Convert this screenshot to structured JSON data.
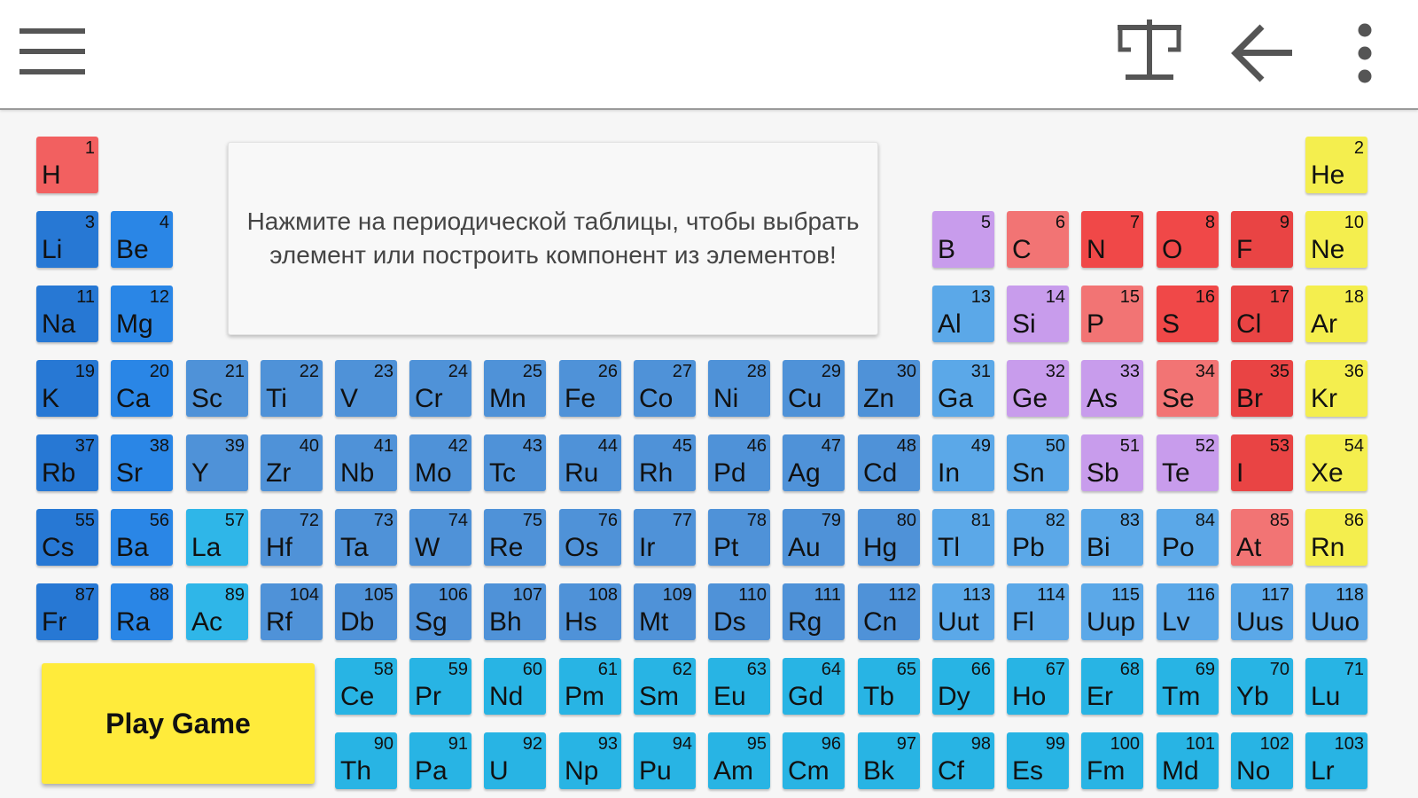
{
  "toolbar": {
    "menu_icon": "hamburger-menu-icon",
    "balance_icon": "scales-balance-icon",
    "back_icon": "arrow-left-icon",
    "more_icon": "more-vertical-icon"
  },
  "info_text": "Нажмите на периодической таблицы, чтобы выбрать элемент или построить компонент из элементов!",
  "play_game_label": "Play Game",
  "colors": {
    "hydrogen": "#f26060",
    "alkali": "#2778d4",
    "alkaline_earth": "#2a86e6",
    "transition": "#4f92d8",
    "post_transition": "#5ba8e8",
    "metalloid": "#c89cec",
    "nonmetal_light": "#f27474",
    "nonmetal_red": "#f04848",
    "halogen_red": "#e94444",
    "noble_gas": "#f4ee4e",
    "lanthanide": "#28b4e4",
    "actinide": "#28b4e4",
    "la_ac": "#2fb6e8"
  },
  "elements": [
    {
      "n": "1",
      "s": "H",
      "r": 0,
      "c": 0,
      "t": "hydrogen"
    },
    {
      "n": "2",
      "s": "He",
      "r": 0,
      "c": 17,
      "t": "noble_gas"
    },
    {
      "n": "3",
      "s": "Li",
      "r": 1,
      "c": 0,
      "t": "alkali"
    },
    {
      "n": "4",
      "s": "Be",
      "r": 1,
      "c": 1,
      "t": "alkaline_earth"
    },
    {
      "n": "5",
      "s": "B",
      "r": 1,
      "c": 12,
      "t": "metalloid"
    },
    {
      "n": "6",
      "s": "C",
      "r": 1,
      "c": 13,
      "t": "nonmetal_light"
    },
    {
      "n": "7",
      "s": "N",
      "r": 1,
      "c": 14,
      "t": "nonmetal_red"
    },
    {
      "n": "8",
      "s": "O",
      "r": 1,
      "c": 15,
      "t": "nonmetal_red"
    },
    {
      "n": "9",
      "s": "F",
      "r": 1,
      "c": 16,
      "t": "halogen_red"
    },
    {
      "n": "10",
      "s": "Ne",
      "r": 1,
      "c": 17,
      "t": "noble_gas"
    },
    {
      "n": "11",
      "s": "Na",
      "r": 2,
      "c": 0,
      "t": "alkali"
    },
    {
      "n": "12",
      "s": "Mg",
      "r": 2,
      "c": 1,
      "t": "alkaline_earth"
    },
    {
      "n": "13",
      "s": "Al",
      "r": 2,
      "c": 12,
      "t": "post_transition"
    },
    {
      "n": "14",
      "s": "Si",
      "r": 2,
      "c": 13,
      "t": "metalloid"
    },
    {
      "n": "15",
      "s": "P",
      "r": 2,
      "c": 14,
      "t": "nonmetal_light"
    },
    {
      "n": "16",
      "s": "S",
      "r": 2,
      "c": 15,
      "t": "nonmetal_red"
    },
    {
      "n": "17",
      "s": "Cl",
      "r": 2,
      "c": 16,
      "t": "halogen_red"
    },
    {
      "n": "18",
      "s": "Ar",
      "r": 2,
      "c": 17,
      "t": "noble_gas"
    },
    {
      "n": "19",
      "s": "K",
      "r": 3,
      "c": 0,
      "t": "alkali"
    },
    {
      "n": "20",
      "s": "Ca",
      "r": 3,
      "c": 1,
      "t": "alkaline_earth"
    },
    {
      "n": "21",
      "s": "Sc",
      "r": 3,
      "c": 2,
      "t": "transition"
    },
    {
      "n": "22",
      "s": "Ti",
      "r": 3,
      "c": 3,
      "t": "transition"
    },
    {
      "n": "23",
      "s": "V",
      "r": 3,
      "c": 4,
      "t": "transition"
    },
    {
      "n": "24",
      "s": "Cr",
      "r": 3,
      "c": 5,
      "t": "transition"
    },
    {
      "n": "25",
      "s": "Mn",
      "r": 3,
      "c": 6,
      "t": "transition"
    },
    {
      "n": "26",
      "s": "Fe",
      "r": 3,
      "c": 7,
      "t": "transition"
    },
    {
      "n": "27",
      "s": "Co",
      "r": 3,
      "c": 8,
      "t": "transition"
    },
    {
      "n": "28",
      "s": "Ni",
      "r": 3,
      "c": 9,
      "t": "transition"
    },
    {
      "n": "29",
      "s": "Cu",
      "r": 3,
      "c": 10,
      "t": "transition"
    },
    {
      "n": "30",
      "s": "Zn",
      "r": 3,
      "c": 11,
      "t": "transition"
    },
    {
      "n": "31",
      "s": "Ga",
      "r": 3,
      "c": 12,
      "t": "post_transition"
    },
    {
      "n": "32",
      "s": "Ge",
      "r": 3,
      "c": 13,
      "t": "metalloid"
    },
    {
      "n": "33",
      "s": "As",
      "r": 3,
      "c": 14,
      "t": "metalloid"
    },
    {
      "n": "34",
      "s": "Se",
      "r": 3,
      "c": 15,
      "t": "nonmetal_light"
    },
    {
      "n": "35",
      "s": "Br",
      "r": 3,
      "c": 16,
      "t": "halogen_red"
    },
    {
      "n": "36",
      "s": "Kr",
      "r": 3,
      "c": 17,
      "t": "noble_gas"
    },
    {
      "n": "37",
      "s": "Rb",
      "r": 4,
      "c": 0,
      "t": "alkali"
    },
    {
      "n": "38",
      "s": "Sr",
      "r": 4,
      "c": 1,
      "t": "alkaline_earth"
    },
    {
      "n": "39",
      "s": "Y",
      "r": 4,
      "c": 2,
      "t": "transition"
    },
    {
      "n": "40",
      "s": "Zr",
      "r": 4,
      "c": 3,
      "t": "transition"
    },
    {
      "n": "41",
      "s": "Nb",
      "r": 4,
      "c": 4,
      "t": "transition"
    },
    {
      "n": "42",
      "s": "Mo",
      "r": 4,
      "c": 5,
      "t": "transition"
    },
    {
      "n": "43",
      "s": "Tc",
      "r": 4,
      "c": 6,
      "t": "transition"
    },
    {
      "n": "44",
      "s": "Ru",
      "r": 4,
      "c": 7,
      "t": "transition"
    },
    {
      "n": "45",
      "s": "Rh",
      "r": 4,
      "c": 8,
      "t": "transition"
    },
    {
      "n": "46",
      "s": "Pd",
      "r": 4,
      "c": 9,
      "t": "transition"
    },
    {
      "n": "47",
      "s": "Ag",
      "r": 4,
      "c": 10,
      "t": "transition"
    },
    {
      "n": "48",
      "s": "Cd",
      "r": 4,
      "c": 11,
      "t": "transition"
    },
    {
      "n": "49",
      "s": "In",
      "r": 4,
      "c": 12,
      "t": "post_transition"
    },
    {
      "n": "50",
      "s": "Sn",
      "r": 4,
      "c": 13,
      "t": "post_transition"
    },
    {
      "n": "51",
      "s": "Sb",
      "r": 4,
      "c": 14,
      "t": "metalloid"
    },
    {
      "n": "52",
      "s": "Te",
      "r": 4,
      "c": 15,
      "t": "metalloid"
    },
    {
      "n": "53",
      "s": "I",
      "r": 4,
      "c": 16,
      "t": "halogen_red"
    },
    {
      "n": "54",
      "s": "Xe",
      "r": 4,
      "c": 17,
      "t": "noble_gas"
    },
    {
      "n": "55",
      "s": "Cs",
      "r": 5,
      "c": 0,
      "t": "alkali"
    },
    {
      "n": "56",
      "s": "Ba",
      "r": 5,
      "c": 1,
      "t": "alkaline_earth"
    },
    {
      "n": "57",
      "s": "La",
      "r": 5,
      "c": 2,
      "t": "la_ac"
    },
    {
      "n": "72",
      "s": "Hf",
      "r": 5,
      "c": 3,
      "t": "transition"
    },
    {
      "n": "73",
      "s": "Ta",
      "r": 5,
      "c": 4,
      "t": "transition"
    },
    {
      "n": "74",
      "s": "W",
      "r": 5,
      "c": 5,
      "t": "transition"
    },
    {
      "n": "75",
      "s": "Re",
      "r": 5,
      "c": 6,
      "t": "transition"
    },
    {
      "n": "76",
      "s": "Os",
      "r": 5,
      "c": 7,
      "t": "transition"
    },
    {
      "n": "77",
      "s": "Ir",
      "r": 5,
      "c": 8,
      "t": "transition"
    },
    {
      "n": "78",
      "s": "Pt",
      "r": 5,
      "c": 9,
      "t": "transition"
    },
    {
      "n": "79",
      "s": "Au",
      "r": 5,
      "c": 10,
      "t": "transition"
    },
    {
      "n": "80",
      "s": "Hg",
      "r": 5,
      "c": 11,
      "t": "transition"
    },
    {
      "n": "81",
      "s": "Tl",
      "r": 5,
      "c": 12,
      "t": "post_transition"
    },
    {
      "n": "82",
      "s": "Pb",
      "r": 5,
      "c": 13,
      "t": "post_transition"
    },
    {
      "n": "83",
      "s": "Bi",
      "r": 5,
      "c": 14,
      "t": "post_transition"
    },
    {
      "n": "84",
      "s": "Po",
      "r": 5,
      "c": 15,
      "t": "post_transition"
    },
    {
      "n": "85",
      "s": "At",
      "r": 5,
      "c": 16,
      "t": "nonmetal_light"
    },
    {
      "n": "86",
      "s": "Rn",
      "r": 5,
      "c": 17,
      "t": "noble_gas"
    },
    {
      "n": "87",
      "s": "Fr",
      "r": 6,
      "c": 0,
      "t": "alkali"
    },
    {
      "n": "88",
      "s": "Ra",
      "r": 6,
      "c": 1,
      "t": "alkaline_earth"
    },
    {
      "n": "89",
      "s": "Ac",
      "r": 6,
      "c": 2,
      "t": "la_ac"
    },
    {
      "n": "104",
      "s": "Rf",
      "r": 6,
      "c": 3,
      "t": "transition"
    },
    {
      "n": "105",
      "s": "Db",
      "r": 6,
      "c": 4,
      "t": "transition"
    },
    {
      "n": "106",
      "s": "Sg",
      "r": 6,
      "c": 5,
      "t": "transition"
    },
    {
      "n": "107",
      "s": "Bh",
      "r": 6,
      "c": 6,
      "t": "transition"
    },
    {
      "n": "108",
      "s": "Hs",
      "r": 6,
      "c": 7,
      "t": "transition"
    },
    {
      "n": "109",
      "s": "Mt",
      "r": 6,
      "c": 8,
      "t": "transition"
    },
    {
      "n": "110",
      "s": "Ds",
      "r": 6,
      "c": 9,
      "t": "transition"
    },
    {
      "n": "111",
      "s": "Rg",
      "r": 6,
      "c": 10,
      "t": "transition"
    },
    {
      "n": "112",
      "s": "Cn",
      "r": 6,
      "c": 11,
      "t": "transition"
    },
    {
      "n": "113",
      "s": "Uut",
      "r": 6,
      "c": 12,
      "t": "post_transition"
    },
    {
      "n": "114",
      "s": "Fl",
      "r": 6,
      "c": 13,
      "t": "post_transition"
    },
    {
      "n": "115",
      "s": "Uup",
      "r": 6,
      "c": 14,
      "t": "post_transition"
    },
    {
      "n": "116",
      "s": "Lv",
      "r": 6,
      "c": 15,
      "t": "post_transition"
    },
    {
      "n": "117",
      "s": "Uus",
      "r": 6,
      "c": 16,
      "t": "post_transition"
    },
    {
      "n": "118",
      "s": "Uuo",
      "r": 6,
      "c": 17,
      "t": "post_transition"
    },
    {
      "n": "58",
      "s": "Ce",
      "r": 7,
      "c": 4,
      "t": "lanthanide"
    },
    {
      "n": "59",
      "s": "Pr",
      "r": 7,
      "c": 5,
      "t": "lanthanide"
    },
    {
      "n": "60",
      "s": "Nd",
      "r": 7,
      "c": 6,
      "t": "lanthanide"
    },
    {
      "n": "61",
      "s": "Pm",
      "r": 7,
      "c": 7,
      "t": "lanthanide"
    },
    {
      "n": "62",
      "s": "Sm",
      "r": 7,
      "c": 8,
      "t": "lanthanide"
    },
    {
      "n": "63",
      "s": "Eu",
      "r": 7,
      "c": 9,
      "t": "lanthanide"
    },
    {
      "n": "64",
      "s": "Gd",
      "r": 7,
      "c": 10,
      "t": "lanthanide"
    },
    {
      "n": "65",
      "s": "Tb",
      "r": 7,
      "c": 11,
      "t": "lanthanide"
    },
    {
      "n": "66",
      "s": "Dy",
      "r": 7,
      "c": 12,
      "t": "lanthanide"
    },
    {
      "n": "67",
      "s": "Ho",
      "r": 7,
      "c": 13,
      "t": "lanthanide"
    },
    {
      "n": "68",
      "s": "Er",
      "r": 7,
      "c": 14,
      "t": "lanthanide"
    },
    {
      "n": "69",
      "s": "Tm",
      "r": 7,
      "c": 15,
      "t": "lanthanide"
    },
    {
      "n": "70",
      "s": "Yb",
      "r": 7,
      "c": 16,
      "t": "lanthanide"
    },
    {
      "n": "71",
      "s": "Lu",
      "r": 7,
      "c": 17,
      "t": "lanthanide"
    },
    {
      "n": "90",
      "s": "Th",
      "r": 8,
      "c": 4,
      "t": "actinide"
    },
    {
      "n": "91",
      "s": "Pa",
      "r": 8,
      "c": 5,
      "t": "actinide"
    },
    {
      "n": "92",
      "s": "U",
      "r": 8,
      "c": 6,
      "t": "actinide"
    },
    {
      "n": "93",
      "s": "Np",
      "r": 8,
      "c": 7,
      "t": "actinide"
    },
    {
      "n": "94",
      "s": "Pu",
      "r": 8,
      "c": 8,
      "t": "actinide"
    },
    {
      "n": "95",
      "s": "Am",
      "r": 8,
      "c": 9,
      "t": "actinide"
    },
    {
      "n": "96",
      "s": "Cm",
      "r": 8,
      "c": 10,
      "t": "actinide"
    },
    {
      "n": "97",
      "s": "Bk",
      "r": 8,
      "c": 11,
      "t": "actinide"
    },
    {
      "n": "98",
      "s": "Cf",
      "r": 8,
      "c": 12,
      "t": "actinide"
    },
    {
      "n": "99",
      "s": "Es",
      "r": 8,
      "c": 13,
      "t": "actinide"
    },
    {
      "n": "100",
      "s": "Fm",
      "r": 8,
      "c": 14,
      "t": "actinide"
    },
    {
      "n": "101",
      "s": "Md",
      "r": 8,
      "c": 15,
      "t": "actinide"
    },
    {
      "n": "102",
      "s": "No",
      "r": 8,
      "c": 16,
      "t": "actinide"
    },
    {
      "n": "103",
      "s": "Lr",
      "r": 8,
      "c": 17,
      "t": "actinide"
    }
  ]
}
